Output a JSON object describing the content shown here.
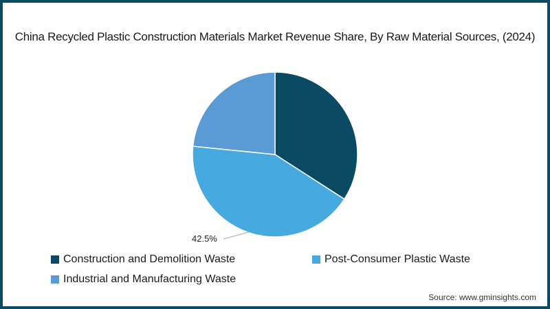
{
  "chart_data": {
    "type": "pie",
    "title": "China Recycled Plastic Construction Materials Market Revenue Share, By Raw Material Sources,  (2024)",
    "categories": [
      "Construction and Demolition Waste",
      "Post-Consumer Plastic Waste",
      "Industrial and Manufacturing Waste"
    ],
    "values": [
      34.1,
      42.5,
      23.4
    ],
    "colors": [
      "#0b4a63",
      "#46a9df",
      "#5b9bd5"
    ],
    "data_labels": [
      {
        "category": "Post-Consumer Plastic Waste",
        "text": "42.5%"
      }
    ],
    "legend_position": "bottom"
  },
  "title": "China Recycled Plastic Construction Materials Market Revenue Share, By Raw Material Sources,  (2024)",
  "legend": [
    {
      "label": "Construction and Demolition Waste",
      "color": "#0b4a63"
    },
    {
      "label": "Post-Consumer Plastic Waste",
      "color": "#46a9df"
    },
    {
      "label": "Industrial and Manufacturing Waste",
      "color": "#5b9bd5"
    }
  ],
  "label_post_consumer": "42.5%",
  "source": "Source: www.gminsights.com"
}
